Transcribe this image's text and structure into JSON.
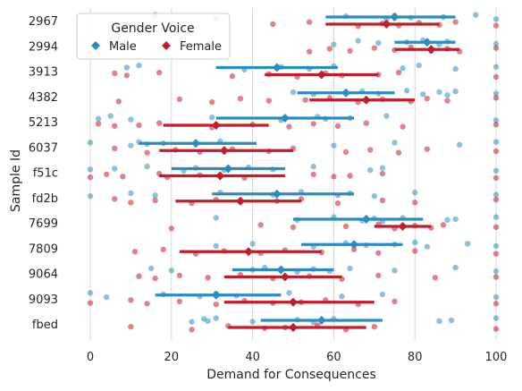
{
  "chart_data": {
    "type": "scatter",
    "xlabel": "Demand for Consequences",
    "ylabel": "Sample Id",
    "xlim": [
      -5,
      102
    ],
    "x_ticks": [
      0,
      20,
      40,
      60,
      80,
      100
    ],
    "grid": "vertical",
    "categories": [
      "2967",
      "2994",
      "3913",
      "4382",
      "5213",
      "6037",
      "f51c",
      "fd2b",
      "7699",
      "7809",
      "9064",
      "9093",
      "fbed"
    ],
    "legend": {
      "title": "Gender Voice",
      "placement": "top-left",
      "entries": [
        "Male",
        "Female"
      ]
    },
    "series": [
      {
        "name": "Male",
        "color": "#2b8cc4",
        "means": [
          75,
          83,
          46,
          63,
          48,
          26,
          34,
          46,
          68,
          65,
          47,
          31,
          57
        ],
        "ci": [
          [
            58,
            90
          ],
          [
            75,
            90
          ],
          [
            31,
            61
          ],
          [
            51,
            75
          ],
          [
            31,
            65
          ],
          [
            12,
            41
          ],
          [
            20,
            48
          ],
          [
            30,
            65
          ],
          [
            50,
            82
          ],
          [
            52,
            77
          ],
          [
            35,
            60
          ],
          [
            16,
            47
          ],
          [
            42,
            72
          ]
        ],
        "points": [
          [
            16,
            31,
            63,
            73,
            75,
            79,
            87,
            95,
            100
          ],
          [
            60,
            66,
            71,
            78,
            82,
            86,
            88,
            100
          ],
          [
            9,
            12,
            38,
            47,
            54,
            60,
            77,
            81,
            90,
            100
          ],
          [
            50,
            55,
            67,
            71,
            78,
            82,
            86,
            88,
            90,
            100
          ],
          [
            2,
            5,
            10,
            30,
            47,
            56,
            58,
            64,
            73,
            100
          ],
          [
            0,
            10,
            12,
            14,
            18,
            32,
            60,
            75,
            91,
            100
          ],
          [
            0,
            6,
            14,
            23,
            26,
            33,
            39,
            45,
            55,
            69,
            72,
            100
          ],
          [
            0,
            10,
            16,
            32,
            45,
            52,
            61,
            64,
            70,
            80,
            100
          ],
          [
            31,
            51,
            60,
            67,
            70,
            72,
            77,
            88,
            90,
            100
          ],
          [
            31,
            40,
            55,
            63,
            68,
            75,
            80,
            83,
            93,
            100
          ],
          [
            15,
            20,
            40,
            43,
            51,
            55,
            59,
            64,
            75,
            90,
            100
          ],
          [
            0,
            4,
            18,
            27,
            31,
            36,
            49,
            62,
            72,
            100
          ],
          [
            25,
            28,
            29,
            31,
            40,
            51,
            55,
            60,
            86,
            89,
            100
          ]
        ]
      },
      {
        "name": "Female",
        "color": "#c21d2c",
        "means": [
          73,
          84,
          57,
          68,
          31,
          33,
          32,
          37,
          77,
          39,
          48,
          50,
          50
        ],
        "ci": [
          [
            58,
            86
          ],
          [
            75,
            91
          ],
          [
            43,
            71
          ],
          [
            54,
            80
          ],
          [
            18,
            44
          ],
          [
            17,
            50
          ],
          [
            17,
            48
          ],
          [
            21,
            52
          ],
          [
            70,
            84
          ],
          [
            22,
            57
          ],
          [
            33,
            62
          ],
          [
            33,
            70
          ],
          [
            34,
            68
          ]
        ],
        "points": [
          [
            9,
            45,
            54,
            66,
            72,
            76,
            81,
            86,
            90,
            100
          ],
          [
            54,
            59,
            64,
            70,
            75,
            79,
            84,
            88,
            91,
            100
          ],
          [
            6,
            9,
            17,
            35,
            44,
            51,
            58,
            62,
            71,
            76,
            100
          ],
          [
            7,
            22,
            30,
            37,
            44,
            53,
            59,
            66,
            72,
            79,
            83,
            88,
            100
          ],
          [
            2,
            6,
            12,
            17,
            30,
            40,
            49,
            55,
            61,
            68,
            77,
            100
          ],
          [
            6,
            14,
            21,
            27,
            35,
            44,
            50,
            63,
            69,
            76,
            83,
            100
          ],
          [
            0,
            4,
            8,
            17,
            19,
            27,
            38,
            55,
            60,
            64,
            72,
            100
          ],
          [
            6,
            10,
            16,
            25,
            31,
            37,
            46,
            52,
            61,
            72,
            80,
            100
          ],
          [
            20,
            42,
            50,
            63,
            71,
            75,
            80,
            84,
            87,
            100
          ],
          [
            11,
            18,
            26,
            33,
            42,
            48,
            57,
            65,
            71,
            80,
            100
          ],
          [
            12,
            16,
            22,
            29,
            37,
            45,
            54,
            62,
            71,
            85,
            100
          ],
          [
            0,
            10,
            14,
            22,
            31,
            38,
            45,
            52,
            58,
            66,
            75,
            100
          ],
          [
            10,
            25,
            34,
            43,
            48,
            56,
            63,
            70,
            100
          ]
        ]
      }
    ]
  }
}
